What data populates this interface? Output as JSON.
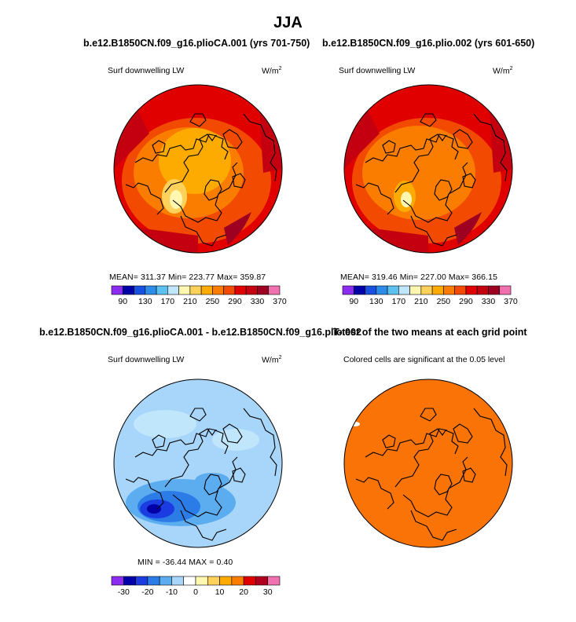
{
  "page_title": "JJA",
  "panels": [
    {
      "title": "b.e12.B1850CN.f09_g16.plioCA.001 (yrs 701-750)",
      "left_label": "Surf downwelling LW",
      "units": "W/m",
      "units_sup": "2",
      "stats": "MEAN= 311.37   Min= 223.77   Max= 359.87",
      "colorbar": {
        "colors": [
          "#8c2cf0",
          "#0000a8",
          "#1850e0",
          "#2c8ce8",
          "#5cc0f0",
          "#bfe6fa",
          "#fff7b0",
          "#fed15a",
          "#fdab00",
          "#fa7d00",
          "#f24a00",
          "#e00000",
          "#c40010",
          "#9e0022",
          "#f070b0"
        ],
        "labels": [
          "90",
          "130",
          "170",
          "210",
          "250",
          "290",
          "330",
          "370"
        ]
      }
    },
    {
      "title": "b.e12.B1850CN.f09_g16.plio.002 (yrs 601-650)",
      "left_label": "Surf downwelling LW",
      "units": "W/m",
      "units_sup": "2",
      "stats": "MEAN= 319.46   Min= 227.00   Max= 366.15",
      "colorbar": {
        "colors": [
          "#8c2cf0",
          "#0000a8",
          "#1850e0",
          "#2c8ce8",
          "#5cc0f0",
          "#bfe6fa",
          "#fff7b0",
          "#fed15a",
          "#fdab00",
          "#fa7d00",
          "#f24a00",
          "#e00000",
          "#c40010",
          "#9e0022",
          "#f070b0"
        ],
        "labels": [
          "90",
          "130",
          "170",
          "210",
          "250",
          "290",
          "330",
          "370"
        ]
      }
    },
    {
      "title": "b.e12.B1850CN.f09_g16.plioCA.001 - b.e12.B1850CN.f09_g16.plio.002",
      "left_label": "Surf downwelling LW",
      "units": "W/m",
      "units_sup": "2",
      "stats": "MIN = -36.44  MAX =    0.40",
      "colorbar": {
        "colors": [
          "#8c2cf0",
          "#0000a8",
          "#1a3ce0",
          "#2c7ce8",
          "#5cacf0",
          "#a8d6fa",
          "#ffffff",
          "#fff7b0",
          "#fed15a",
          "#fdab00",
          "#fa7d00",
          "#e00000",
          "#b00020",
          "#f070b0"
        ],
        "labels": [
          "-30",
          "-20",
          "-10",
          "0",
          "10",
          "20",
          "30"
        ]
      }
    },
    {
      "title": "T-test of the two means at each grid point",
      "center_label": "Colored cells are significant at the 0.05 level"
    }
  ],
  "chart_data": [
    {
      "type": "heatmap",
      "title": "b.e12.B1850CN.f09_g16.plioCA.001 (yrs 701-750)",
      "variable": "Surf downwelling LW",
      "units": "W/m2",
      "projection": "north polar stereographic",
      "mean": 311.37,
      "min": 223.77,
      "max": 359.87,
      "levels": [
        90,
        110,
        130,
        150,
        170,
        190,
        210,
        230,
        250,
        270,
        290,
        310,
        330,
        350,
        370
      ],
      "colormap": [
        "#8c2cf0",
        "#0000a8",
        "#1850e0",
        "#2c8ce8",
        "#5cc0f0",
        "#bfe6fa",
        "#fff7b0",
        "#fed15a",
        "#fdab00",
        "#fa7d00",
        "#f24a00",
        "#e00000",
        "#c40010",
        "#9e0022",
        "#f070b0"
      ]
    },
    {
      "type": "heatmap",
      "title": "b.e12.B1850CN.f09_g16.plio.002 (yrs 601-650)",
      "variable": "Surf downwelling LW",
      "units": "W/m2",
      "projection": "north polar stereographic",
      "mean": 319.46,
      "min": 227.0,
      "max": 366.15,
      "levels": [
        90,
        110,
        130,
        150,
        170,
        190,
        210,
        230,
        250,
        270,
        290,
        310,
        330,
        350,
        370
      ],
      "colormap": [
        "#8c2cf0",
        "#0000a8",
        "#1850e0",
        "#2c8ce8",
        "#5cc0f0",
        "#bfe6fa",
        "#fff7b0",
        "#fed15a",
        "#fdab00",
        "#fa7d00",
        "#f24a00",
        "#e00000",
        "#c40010",
        "#9e0022",
        "#f070b0"
      ]
    },
    {
      "type": "heatmap",
      "title": "b.e12.B1850CN.f09_g16.plioCA.001 - b.e12.B1850CN.f09_g16.plio.002",
      "variable": "Surf downwelling LW",
      "units": "W/m2",
      "projection": "north polar stereographic",
      "min": -36.44,
      "max": 0.4,
      "levels": [
        -35,
        -30,
        -25,
        -20,
        -15,
        -10,
        -5,
        0,
        5,
        10,
        15,
        20,
        25,
        30,
        35
      ],
      "colormap": [
        "#8c2cf0",
        "#0000a8",
        "#1a3ce0",
        "#2c7ce8",
        "#5cacf0",
        "#a8d6fa",
        "#ffffff",
        "#fff7b0",
        "#fed15a",
        "#fdab00",
        "#fa7d00",
        "#e00000",
        "#b00020",
        "#f070b0"
      ]
    },
    {
      "type": "heatmap",
      "title": "T-test of the two means at each grid point",
      "note": "Colored cells are significant at the 0.05 level",
      "projection": "north polar stereographic",
      "fill_color": "#f97306"
    }
  ]
}
